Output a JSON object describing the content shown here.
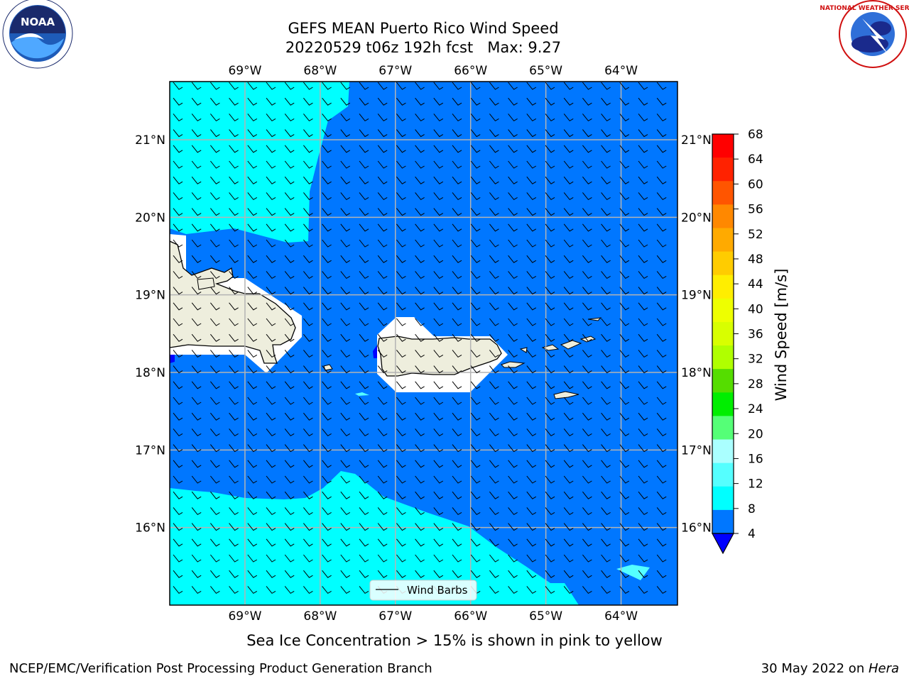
{
  "header": {
    "title_line1": "GEFS MEAN Puerto Rico Wind Speed",
    "title_line2": "20220529 t06z 192h fcst   Max: 9.27"
  },
  "logos": {
    "left": {
      "icon": "noaa-logo",
      "text": "NOAA"
    },
    "right": {
      "icon": "nws-logo",
      "text": "NATIONAL WEATHER SERVICE"
    }
  },
  "map": {
    "lon_range": [
      -70.0,
      -63.25
    ],
    "lat_range": [
      15.0,
      21.75
    ],
    "lon_ticks": [
      {
        "value": -69,
        "label": "69°W"
      },
      {
        "value": -68,
        "label": "68°W"
      },
      {
        "value": -67,
        "label": "67°W"
      },
      {
        "value": -66,
        "label": "66°W"
      },
      {
        "value": -65,
        "label": "65°W"
      },
      {
        "value": -64,
        "label": "64°W"
      }
    ],
    "lat_ticks": [
      {
        "value": 21,
        "label": "21°N"
      },
      {
        "value": 20,
        "label": "20°N"
      },
      {
        "value": 19,
        "label": "19°N"
      },
      {
        "value": 18,
        "label": "18°N"
      },
      {
        "value": 17,
        "label": "17°N"
      },
      {
        "value": 16,
        "label": "16°N"
      }
    ],
    "gridlines": true,
    "legend": {
      "label": "Wind Barbs",
      "placement": "lower-center"
    }
  },
  "colorbar": {
    "label": "Wind Speed [m/s]",
    "ticks": [
      "68",
      "64",
      "60",
      "56",
      "52",
      "48",
      "44",
      "40",
      "36",
      "32",
      "28",
      "24",
      "20",
      "16",
      "12",
      "8",
      "4"
    ],
    "colors": [
      "#ff0000",
      "#ff2200",
      "#ff5500",
      "#ff8800",
      "#ffaa00",
      "#ffcc00",
      "#ffee00",
      "#eeff00",
      "#d8ff00",
      "#b0ff00",
      "#55dd00",
      "#00ee00",
      "#55ff77",
      "#aaffff",
      "#55ffff",
      "#00ffff",
      "#0077ff"
    ],
    "extend_color": "#0000ff"
  },
  "colors": {
    "ocean_low": "#0077ff",
    "ocean_mid": "#00ffff",
    "land": "#eeeedd",
    "no_data": "#ffffff"
  },
  "caption": "Sea Ice Concentration > 15% is shown in pink to yellow",
  "footer": {
    "left": "NCEP/EMC/Verification Post Processing Product Generation Branch",
    "right_prefix": "30 May 2022 on ",
    "right_italic": "Hera"
  }
}
